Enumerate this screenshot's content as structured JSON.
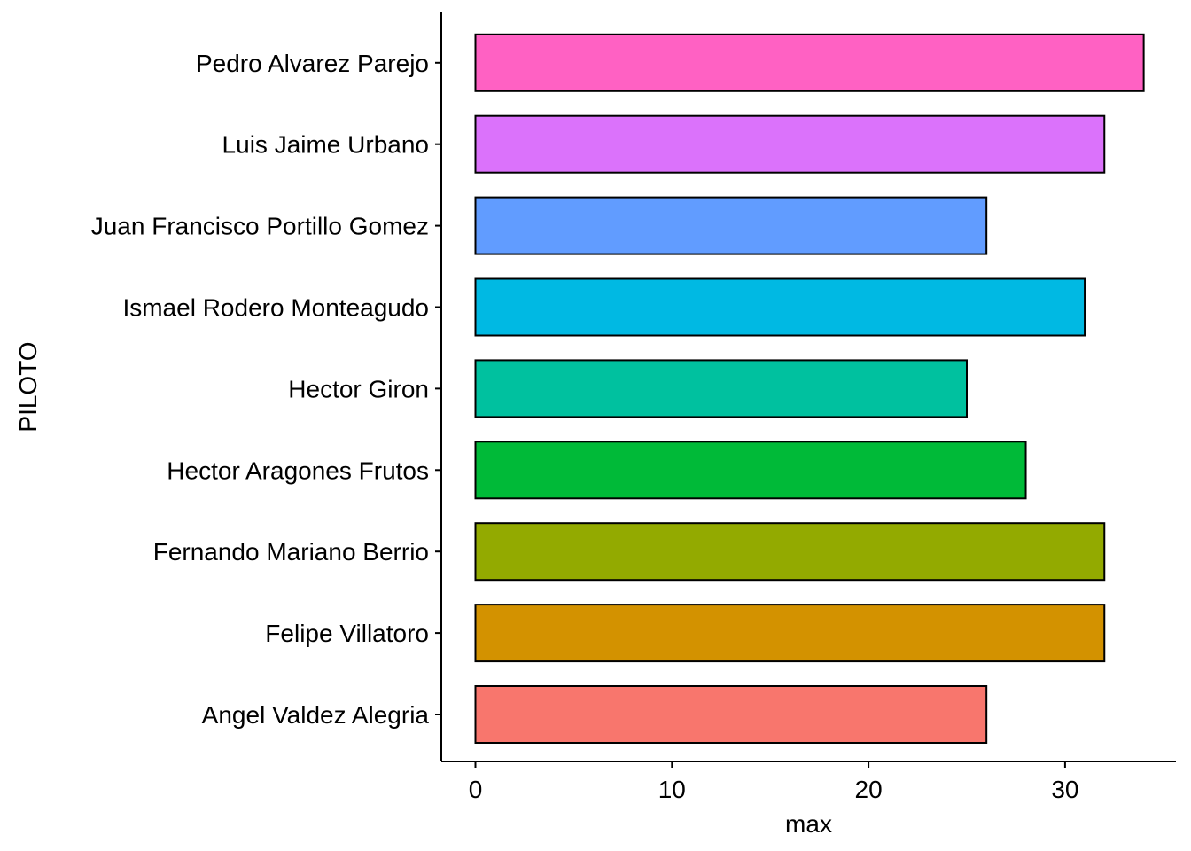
{
  "chart_data": {
    "type": "bar",
    "orientation": "horizontal",
    "xlabel": "max",
    "ylabel": "PILOTO",
    "xlim": [
      -1.7,
      35.5
    ],
    "x_ticks": [
      0,
      10,
      20,
      30
    ],
    "grid": false,
    "legend": "none",
    "categories": [
      "Angel Valdez Alegria",
      "Felipe Villatoro",
      "Fernando Mariano Berrio",
      "Hector Aragones Frutos",
      "Hector Giron",
      "Ismael Rodero Monteagudo",
      "Juan Francisco Portillo Gomez",
      "Luis Jaime Urbano",
      "Pedro Alvarez Parejo"
    ],
    "values": [
      26,
      32,
      32,
      28,
      25,
      31,
      26,
      32,
      34
    ],
    "colors": [
      "#F8766D",
      "#D39200",
      "#93AA00",
      "#00BA38",
      "#00C19F",
      "#00B9E3",
      "#619CFF",
      "#DB72FB",
      "#FF61C3"
    ]
  }
}
